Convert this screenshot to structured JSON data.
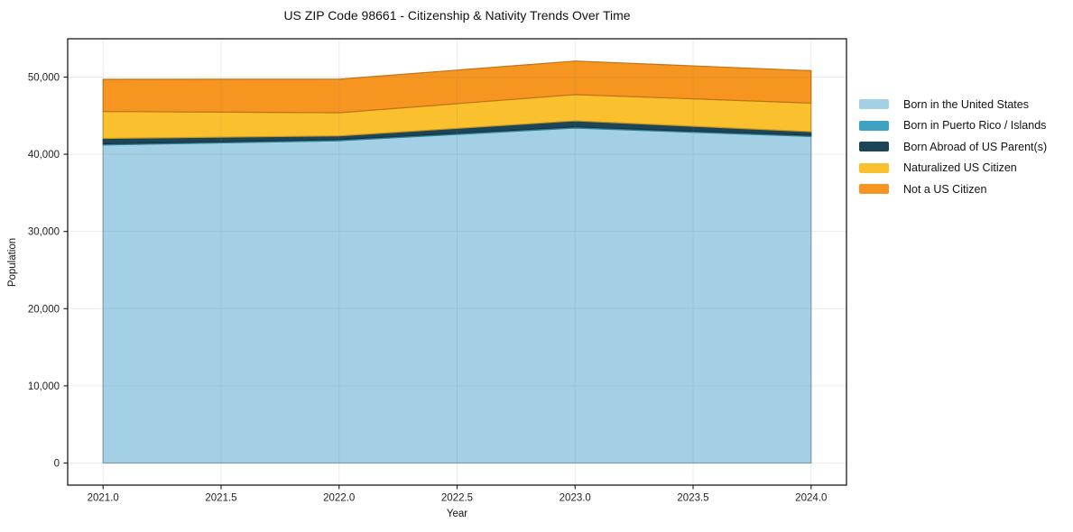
{
  "title": "US ZIP Code 98661 - Citizenship & Nativity Trends Over Time",
  "chart_data": {
    "type": "area",
    "stacked": true,
    "title": "US ZIP Code 98661 - Citizenship & Nativity Trends Over Time",
    "xlabel": "Year",
    "ylabel": "Population",
    "x": [
      2021,
      2022,
      2023,
      2024
    ],
    "series": [
      {
        "name": "Born in the United States",
        "color": "#A3D0E5",
        "values": [
          41200,
          41750,
          43400,
          42300
        ]
      },
      {
        "name": "Born in Puerto Rico / Islands",
        "color": "#3FA2C2",
        "values": [
          150,
          150,
          150,
          150
        ]
      },
      {
        "name": "Born Abroad of US Parent(s)",
        "color": "#1C4557",
        "values": [
          700,
          480,
          780,
          480
        ]
      },
      {
        "name": "Naturalized US Citizen",
        "color": "#FBC02D",
        "values": [
          3500,
          3000,
          3400,
          3700
        ]
      },
      {
        "name": "Not a US Citizen",
        "color": "#F6951F",
        "values": [
          4150,
          4350,
          4350,
          4200
        ]
      }
    ],
    "stack_totals": [
      49700,
      49730,
      52080,
      50830
    ],
    "xticks": [
      2021.0,
      2021.5,
      2022.0,
      2022.5,
      2023.0,
      2023.5,
      2024.0
    ],
    "xtick_labels": [
      "2021.0",
      "2021.5",
      "2022.0",
      "2022.5",
      "2023.0",
      "2023.5",
      "2024.0"
    ],
    "yticks": [
      0,
      10000,
      20000,
      30000,
      40000,
      50000
    ],
    "ytick_labels": [
      "0",
      "10,000",
      "20,000",
      "30,000",
      "40,000",
      "50,000"
    ],
    "xlim": [
      2020.85,
      2024.15
    ],
    "ylim": [
      -2860,
      54960
    ],
    "grid": true,
    "legend_position": "right",
    "colors": {
      "gridline": "rgba(128,128,128,0.16)",
      "spine": "#1a1a1a",
      "tick_text": "#1f1f1f",
      "background": "#ffffff"
    }
  }
}
